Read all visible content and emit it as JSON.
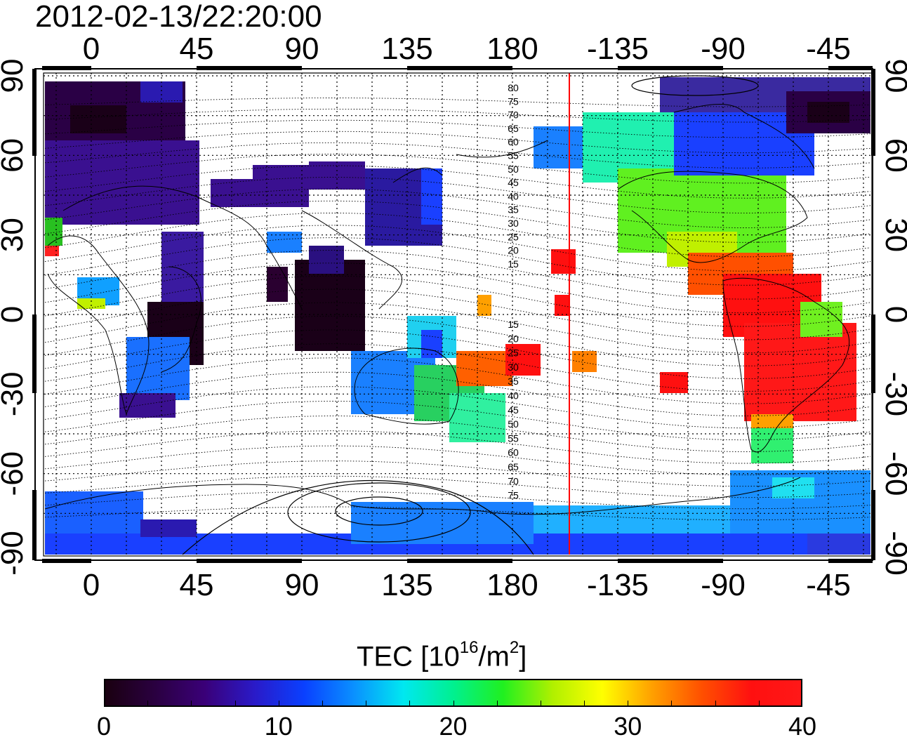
{
  "timestamp": "2012-02-13/22:20:00",
  "top_lon_labels": [
    "0",
    "45",
    "90",
    "135",
    "180",
    "-135",
    "-90",
    "-45"
  ],
  "bottom_lon_labels": [
    "0",
    "45",
    "90",
    "135",
    "180",
    "-135",
    "-90",
    "-45"
  ],
  "left_lat_labels": [
    "90",
    "60",
    "30",
    "0",
    "-30",
    "-60",
    "-90"
  ],
  "right_lat_labels": [
    "90",
    "60",
    "30",
    "0",
    "-30",
    "-60",
    "-90"
  ],
  "contour_labels_north": [
    "80",
    "75",
    "70",
    "65",
    "60",
    "55",
    "50",
    "45",
    "40",
    "35",
    "30",
    "25",
    "20",
    "15"
  ],
  "contour_labels_south": [
    "15",
    "20",
    "25",
    "30",
    "35",
    "40",
    "45",
    "50",
    "55",
    "60",
    "65",
    "70",
    "75"
  ],
  "colorbar": {
    "label_prefix": "TEC  [10",
    "label_exp1": "16",
    "label_mid": "/m",
    "label_exp2": "2",
    "label_suffix": "]",
    "ticks": [
      "0",
      "10",
      "20",
      "30",
      "40"
    ],
    "colors": [
      "#1a0010",
      "#2a0040",
      "#3a0078",
      "#2a1ac8",
      "#0a40ff",
      "#0a90ff",
      "#00e8f0",
      "#00f090",
      "#20f020",
      "#b0f000",
      "#ffff00",
      "#ffa000",
      "#ff5000",
      "#ff1010",
      "#ff1818"
    ]
  },
  "colors": {
    "terminator_line": "#ff0000",
    "grid": "#000000"
  }
}
